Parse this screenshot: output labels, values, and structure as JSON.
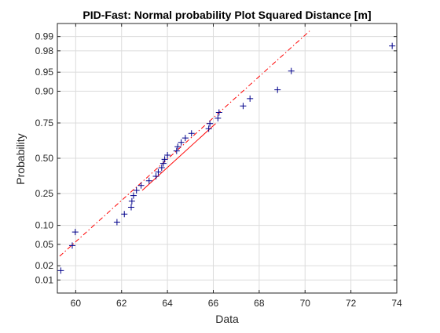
{
  "chart_data": {
    "type": "scatter",
    "title": "PID-Fast: Normal probability Plot Squared Distance [m]",
    "xlabel": "Data",
    "ylabel": "Probability",
    "xlim": [
      59.2,
      74.0
    ],
    "x_ticks": [
      60,
      62,
      64,
      66,
      68,
      70,
      72,
      74
    ],
    "y_ticks": [
      "0.01",
      "0.02",
      "0.05",
      "0.10",
      "0.25",
      "0.50",
      "0.75",
      "0.90",
      "0.95",
      "0.98",
      "0.99"
    ],
    "grid": true,
    "y_scale": "normal-probability",
    "colors": {
      "markers": "#00008b",
      "fit_line": "#ff0000",
      "grid": "#dcdcdc",
      "axis": "#262626"
    },
    "points": [
      {
        "x": 59.35,
        "y": 0.0159
      },
      {
        "x": 59.85,
        "y": 0.0476
      },
      {
        "x": 59.98,
        "y": 0.0794
      },
      {
        "x": 61.8,
        "y": 0.1111
      },
      {
        "x": 62.12,
        "y": 0.1429
      },
      {
        "x": 62.42,
        "y": 0.1746
      },
      {
        "x": 62.45,
        "y": 0.2063
      },
      {
        "x": 62.52,
        "y": 0.2381
      },
      {
        "x": 62.65,
        "y": 0.2698
      },
      {
        "x": 62.85,
        "y": 0.3016
      },
      {
        "x": 63.2,
        "y": 0.3333
      },
      {
        "x": 63.5,
        "y": 0.3651
      },
      {
        "x": 63.6,
        "y": 0.3968
      },
      {
        "x": 63.75,
        "y": 0.4286
      },
      {
        "x": 63.82,
        "y": 0.4603
      },
      {
        "x": 63.88,
        "y": 0.4921
      },
      {
        "x": 64.0,
        "y": 0.5238
      },
      {
        "x": 64.4,
        "y": 0.5556
      },
      {
        "x": 64.45,
        "y": 0.5873
      },
      {
        "x": 64.6,
        "y": 0.619
      },
      {
        "x": 64.78,
        "y": 0.6508
      },
      {
        "x": 65.05,
        "y": 0.6825
      },
      {
        "x": 65.8,
        "y": 0.7143
      },
      {
        "x": 65.85,
        "y": 0.746
      },
      {
        "x": 66.2,
        "y": 0.7778
      },
      {
        "x": 66.25,
        "y": 0.8095
      },
      {
        "x": 67.3,
        "y": 0.8413
      },
      {
        "x": 67.6,
        "y": 0.873
      },
      {
        "x": 68.8,
        "y": 0.9048
      },
      {
        "x": 69.4,
        "y": 0.9524
      },
      {
        "x": 73.8,
        "y": 0.9841
      }
    ],
    "fit_line": {
      "solid": [
        {
          "x": 62.9,
          "y": 0.2698
        },
        {
          "x": 66.1,
          "y": 0.746
        }
      ],
      "dashdot": [
        {
          "x": 59.3,
          "y": 0.0306
        },
        {
          "x": 70.2,
          "y": 0.9925
        }
      ]
    }
  }
}
